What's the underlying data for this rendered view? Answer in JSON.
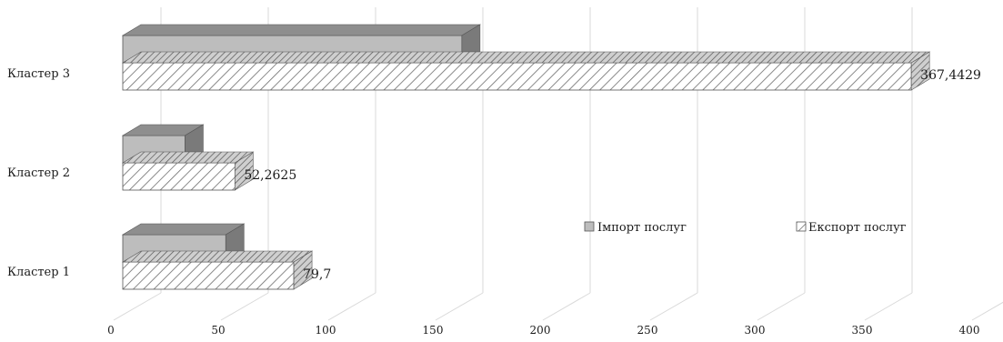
{
  "chart_data": {
    "type": "bar",
    "orientation": "horizontal",
    "three_d": true,
    "title": "",
    "categories": [
      "Кластер 1",
      "Кластер 2",
      "Кластер 3"
    ],
    "series": [
      {
        "name": "Імпорт послуг",
        "values": [
          48,
          29,
          158
        ],
        "pattern": "solid-gray",
        "color": "#bdbdbd"
      },
      {
        "name": "Експорт послуг",
        "values": [
          79.7,
          52.2625,
          367.4429
        ],
        "pattern": "diagonal-hatch",
        "color": "#ffffff"
      }
    ],
    "data_labels": [
      "79,7",
      "52,2625",
      "367,4429"
    ],
    "x_ticks": [
      "0",
      "50",
      "100",
      "150",
      "200",
      "250",
      "300",
      "350",
      "400"
    ],
    "xlim": [
      0,
      400
    ],
    "grid": true,
    "legend_position": "right-middle",
    "xlabel": "",
    "ylabel": ""
  }
}
